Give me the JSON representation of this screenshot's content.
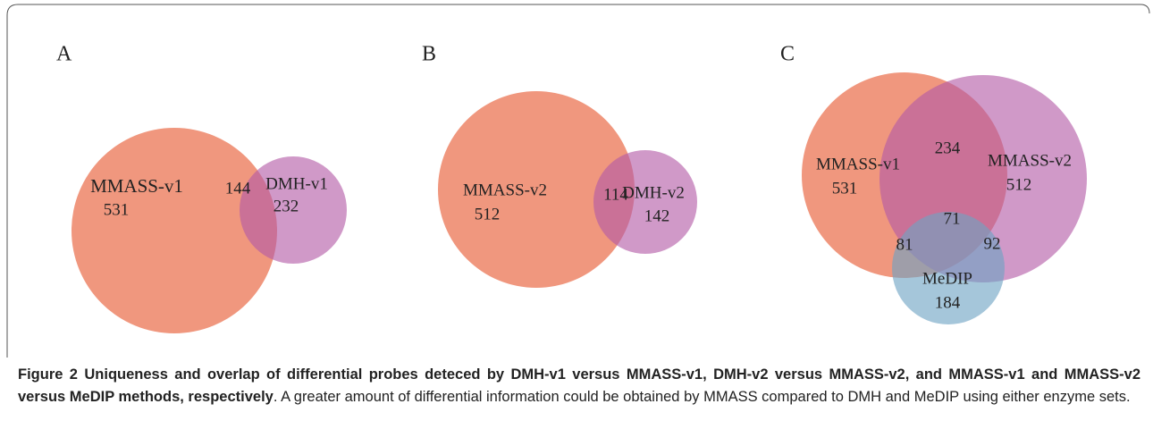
{
  "panels": [
    {
      "label": "A",
      "regions": [
        {
          "name": "MMASS-v1",
          "count": 531
        },
        {
          "count": 144
        },
        {
          "name": "DMH-v1",
          "count": 232
        }
      ]
    },
    {
      "label": "B",
      "regions": [
        {
          "name": "MMASS-v2",
          "count": 512
        },
        {
          "count": 114
        },
        {
          "name": "DMH-v2",
          "count": 142
        }
      ]
    },
    {
      "label": "C",
      "regions": [
        {
          "name": "MMASS-v1",
          "count": 531
        },
        {
          "count": 234
        },
        {
          "name": "MMASS-v2",
          "count": 512
        },
        {
          "count": 71
        },
        {
          "count": 81
        },
        {
          "count": 92
        },
        {
          "name": "MeDIP",
          "count": 184
        }
      ]
    }
  ],
  "caption": {
    "label": "Figure 2",
    "title": "Uniqueness and overlap of differential probes deteced by DMH-v1 versus MMASS-v1, DMH-v2 versus MMASS-v2, and MMASS-v1 and MMASS-v2 versus MeDIP methods, respectively",
    "text": ". A greater amount of differential information could be obtained by MMASS compared to DMH and MeDIP using either enzyme sets."
  }
}
